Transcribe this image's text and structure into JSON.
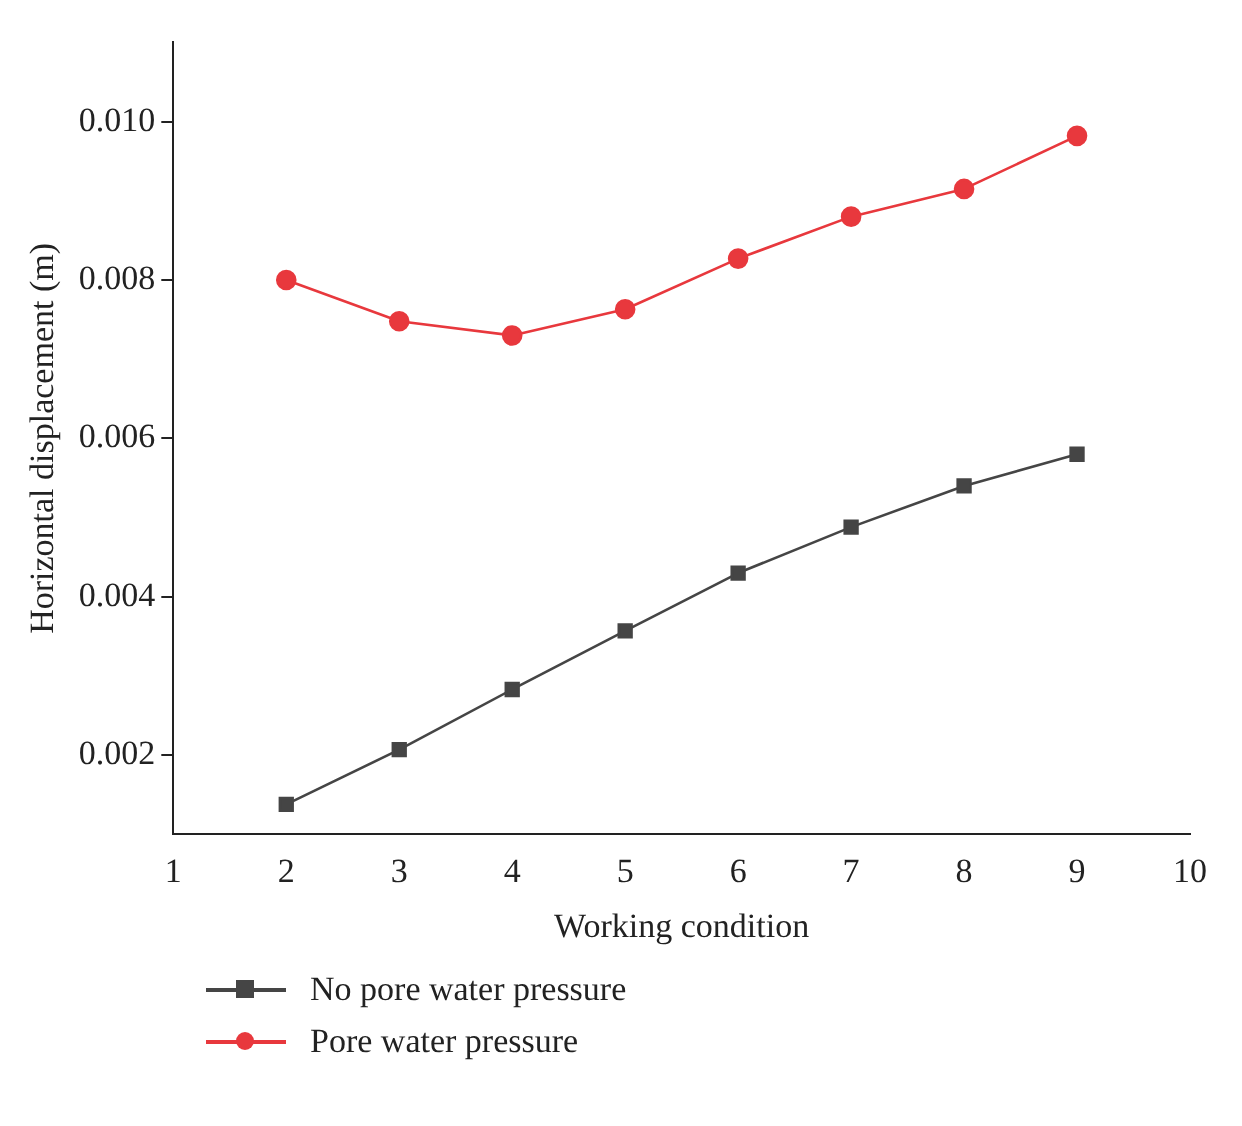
{
  "chart_data": {
    "type": "line",
    "xlabel": "Working condition",
    "ylabel": "Horizontal displacement (m)",
    "x": [
      2,
      3,
      4,
      5,
      6,
      7,
      8,
      9
    ],
    "xlim": [
      1,
      10
    ],
    "xticks": [
      1,
      2,
      3,
      4,
      5,
      6,
      7,
      8,
      9,
      10
    ],
    "ylim": [
      0.001,
      0.011
    ],
    "yticks": [
      {
        "value": 0.002,
        "label": "0.002"
      },
      {
        "value": 0.004,
        "label": "0.004"
      },
      {
        "value": 0.006,
        "label": "0.006"
      },
      {
        "value": 0.008,
        "label": "0.008"
      },
      {
        "value": 0.01,
        "label": "0.010"
      }
    ],
    "series": [
      {
        "name": "No pore water pressure",
        "color": "#454545",
        "marker": "square",
        "values": [
          0.00138,
          0.00207,
          0.00283,
          0.00357,
          0.0043,
          0.00488,
          0.0054,
          0.0058
        ]
      },
      {
        "name": "Pore water pressure",
        "color": "#e8383d",
        "marker": "circle",
        "values": [
          0.008,
          0.00748,
          0.0073,
          0.00763,
          0.00827,
          0.0088,
          0.00915,
          0.00982
        ]
      }
    ],
    "grid": false,
    "legend": "bottom"
  }
}
